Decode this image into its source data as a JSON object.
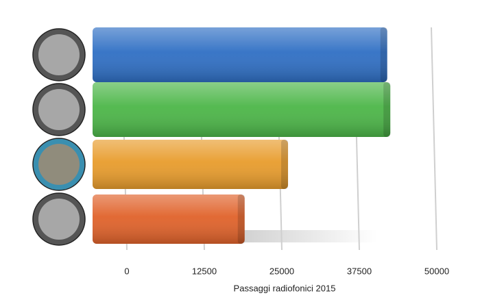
{
  "chart_data": {
    "type": "bar",
    "orientation": "horizontal",
    "x_label": "Passaggi radiofonici 2015",
    "categories": [
      null,
      null,
      null,
      null
    ],
    "values": [
      42000,
      42500,
      26000,
      19000
    ],
    "colors": [
      "#2f6fc4",
      "#4cb648",
      "#e89c2c",
      "#e0622a"
    ],
    "xlim": [
      0,
      50000
    ],
    "xticks": [
      0,
      12500,
      25000,
      37500,
      50000
    ],
    "grid": true
  }
}
